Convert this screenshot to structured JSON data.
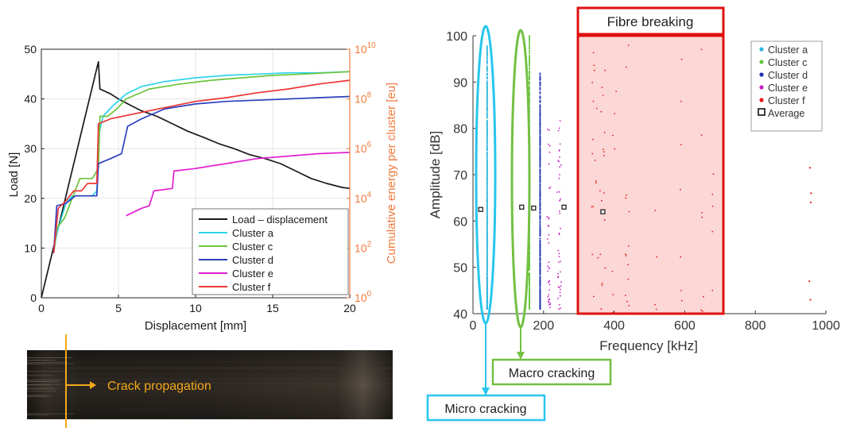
{
  "chart_data": [
    {
      "type": "line",
      "ylabel_left": "Load [N]",
      "ylabel_right": "Cumulative energy per cluster [eu]",
      "xlabel": "Displacement [mm]",
      "xlim": [
        0,
        20
      ],
      "ylim_left": [
        0,
        50
      ],
      "ylim_right_log10": [
        0,
        10
      ],
      "x_ticks": [
        "0",
        "5",
        "10",
        "15",
        "20"
      ],
      "y_ticks_left": [
        "0",
        "10",
        "20",
        "30",
        "40",
        "50"
      ],
      "y_ticks_right": [
        {
          "base": "10",
          "exp": "0"
        },
        {
          "base": "10",
          "exp": "2"
        },
        {
          "base": "10",
          "exp": "4"
        },
        {
          "base": "10",
          "exp": "6"
        },
        {
          "base": "10",
          "exp": "8"
        },
        {
          "base": "10",
          "exp": "10"
        }
      ],
      "grid": true,
      "legend_position": "bottom-right",
      "right_axis_color": "#f07a3c",
      "series": [
        {
          "name": "Load – displacement",
          "axis": "left",
          "color": "#1a1a1a",
          "points": [
            [
              0,
              0
            ],
            [
              3.7,
              47.5
            ],
            [
              3.8,
              42
            ],
            [
              4.5,
              41
            ],
            [
              5,
              40
            ],
            [
              5.8,
              38.7
            ],
            [
              6.5,
              37.6
            ],
            [
              7.5,
              36.5
            ],
            [
              8.5,
              35
            ],
            [
              9.5,
              33.5
            ],
            [
              10.5,
              32.3
            ],
            [
              11.5,
              31
            ],
            [
              12.5,
              30
            ],
            [
              13.5,
              28.8
            ],
            [
              14.5,
              28
            ],
            [
              15.5,
              27
            ],
            [
              16.5,
              25.5
            ],
            [
              17.5,
              24
            ],
            [
              18.5,
              23
            ],
            [
              19.5,
              22.2
            ],
            [
              20,
              22
            ]
          ]
        },
        {
          "name": "Cluster a",
          "axis": "right",
          "color": "#2ed3ec",
          "points": [
            [
              0.8,
              1.8
            ],
            [
              1.0,
              2.6
            ],
            [
              1.3,
              3.2
            ],
            [
              1.6,
              3.8
            ],
            [
              2.0,
              4.1
            ],
            [
              2.5,
              4.1
            ],
            [
              3.3,
              4.1
            ],
            [
              3.6,
              4.3
            ],
            [
              3.7,
              6.5
            ],
            [
              4,
              7.3
            ],
            [
              4.6,
              7.7
            ],
            [
              5.5,
              8.2
            ],
            [
              6.5,
              8.5
            ],
            [
              8,
              8.7
            ],
            [
              10,
              8.85
            ],
            [
              12,
              8.95
            ],
            [
              14,
              9.0
            ],
            [
              16,
              9.05
            ],
            [
              18,
              9.05
            ],
            [
              20,
              9.1
            ]
          ]
        },
        {
          "name": "Cluster c",
          "axis": "right",
          "color": "#6cc43a",
          "points": [
            [
              0.8,
              1.8
            ],
            [
              1.0,
              2.8
            ],
            [
              1.5,
              3.2
            ],
            [
              2.5,
              4.8
            ],
            [
              3.3,
              4.8
            ],
            [
              3.7,
              5.2
            ],
            [
              3.8,
              7.3
            ],
            [
              4.3,
              7.3
            ],
            [
              4.9,
              7.6
            ],
            [
              5.5,
              8.0
            ],
            [
              7,
              8.4
            ],
            [
              9,
              8.6
            ],
            [
              11,
              8.75
            ],
            [
              13,
              8.85
            ],
            [
              15,
              8.95
            ],
            [
              17,
              9.0
            ],
            [
              20,
              9.1
            ]
          ]
        },
        {
          "name": "Cluster d",
          "axis": "right",
          "color": "#2b3fbf",
          "points": [
            [
              0.8,
              1.8
            ],
            [
              1.0,
              3.7
            ],
            [
              1.6,
              3.8
            ],
            [
              2.2,
              4.1
            ],
            [
              3.6,
              4.1
            ],
            [
              3.7,
              5.4
            ],
            [
              4.5,
              5.6
            ],
            [
              5.2,
              5.8
            ],
            [
              5.6,
              6.9
            ],
            [
              6.5,
              7.2
            ],
            [
              8,
              7.6
            ],
            [
              10,
              7.8
            ],
            [
              12,
              7.9
            ],
            [
              14,
              7.95
            ],
            [
              16,
              8.0
            ],
            [
              18,
              8.05
            ],
            [
              20,
              8.1
            ]
          ]
        },
        {
          "name": "Cluster e",
          "axis": "right",
          "color": "#e020d0",
          "points": [
            [
              5.5,
              3.3
            ],
            [
              6.5,
              3.6
            ],
            [
              7.0,
              3.7
            ],
            [
              7.3,
              4.3
            ],
            [
              8.5,
              4.4
            ],
            [
              8.6,
              5.1
            ],
            [
              10,
              5.2
            ],
            [
              12,
              5.4
            ],
            [
              14,
              5.6
            ],
            [
              16,
              5.7
            ],
            [
              18,
              5.8
            ],
            [
              20,
              5.85
            ]
          ]
        },
        {
          "name": "Cluster f",
          "axis": "right",
          "color": "#ee3535",
          "points": [
            [
              0.8,
              1.8
            ],
            [
              1.1,
              3.6
            ],
            [
              1.6,
              3.9
            ],
            [
              2.1,
              4.3
            ],
            [
              2.6,
              4.3
            ],
            [
              3.0,
              4.6
            ],
            [
              3.6,
              4.6
            ],
            [
              3.7,
              7.0
            ],
            [
              4.5,
              7.2
            ],
            [
              6,
              7.4
            ],
            [
              8,
              7.65
            ],
            [
              10,
              7.9
            ],
            [
              12,
              8.05
            ],
            [
              14,
              8.25
            ],
            [
              16,
              8.4
            ],
            [
              18,
              8.6
            ],
            [
              20,
              8.75
            ]
          ]
        }
      ]
    },
    {
      "type": "scatter",
      "xlabel": "Frequency [kHz]",
      "ylabel": "Amplitude [dB]",
      "xlim": [
        0,
        1000
      ],
      "ylim": [
        40,
        100
      ],
      "x_ticks": [
        "0",
        "200",
        "400",
        "600",
        "800",
        "1000"
      ],
      "y_ticks": [
        "40",
        "50",
        "60",
        "70",
        "80",
        "90",
        "100"
      ],
      "grid": false,
      "legend_position": "top-right",
      "series": [
        {
          "name": "Cluster  a",
          "color": "#2eb6e0",
          "x_range": [
            0,
            40
          ],
          "y_range": [
            41,
            98
          ]
        },
        {
          "name": "Cluster  c",
          "color": "#64c83c",
          "x_range": [
            120,
            160
          ],
          "y_range": [
            41,
            100
          ]
        },
        {
          "name": "Cluster  d",
          "color": "#1c2fb0",
          "x_range": [
            160,
            190
          ],
          "y_range": [
            41,
            92
          ]
        },
        {
          "name": "Cluster  e",
          "color": "#c020c0",
          "x_range": [
            190,
            270
          ],
          "y_range": [
            41,
            82
          ]
        },
        {
          "name": "Cluster  f",
          "color": "#e81818",
          "x_range": [
            300,
            960
          ],
          "y_range": [
            40,
            99
          ]
        }
      ],
      "average_label": "Average",
      "averages": [
        [
          22,
          62.5
        ],
        [
          138,
          63
        ],
        [
          172,
          62.8
        ],
        [
          258,
          63
        ],
        [
          368,
          62
        ]
      ]
    }
  ],
  "annotations": {
    "crack_propagation": "Crack propagation",
    "fibre_breaking": "Fibre breaking",
    "macro_cracking": "Macro cracking",
    "micro_cracking": "Micro cracking"
  }
}
